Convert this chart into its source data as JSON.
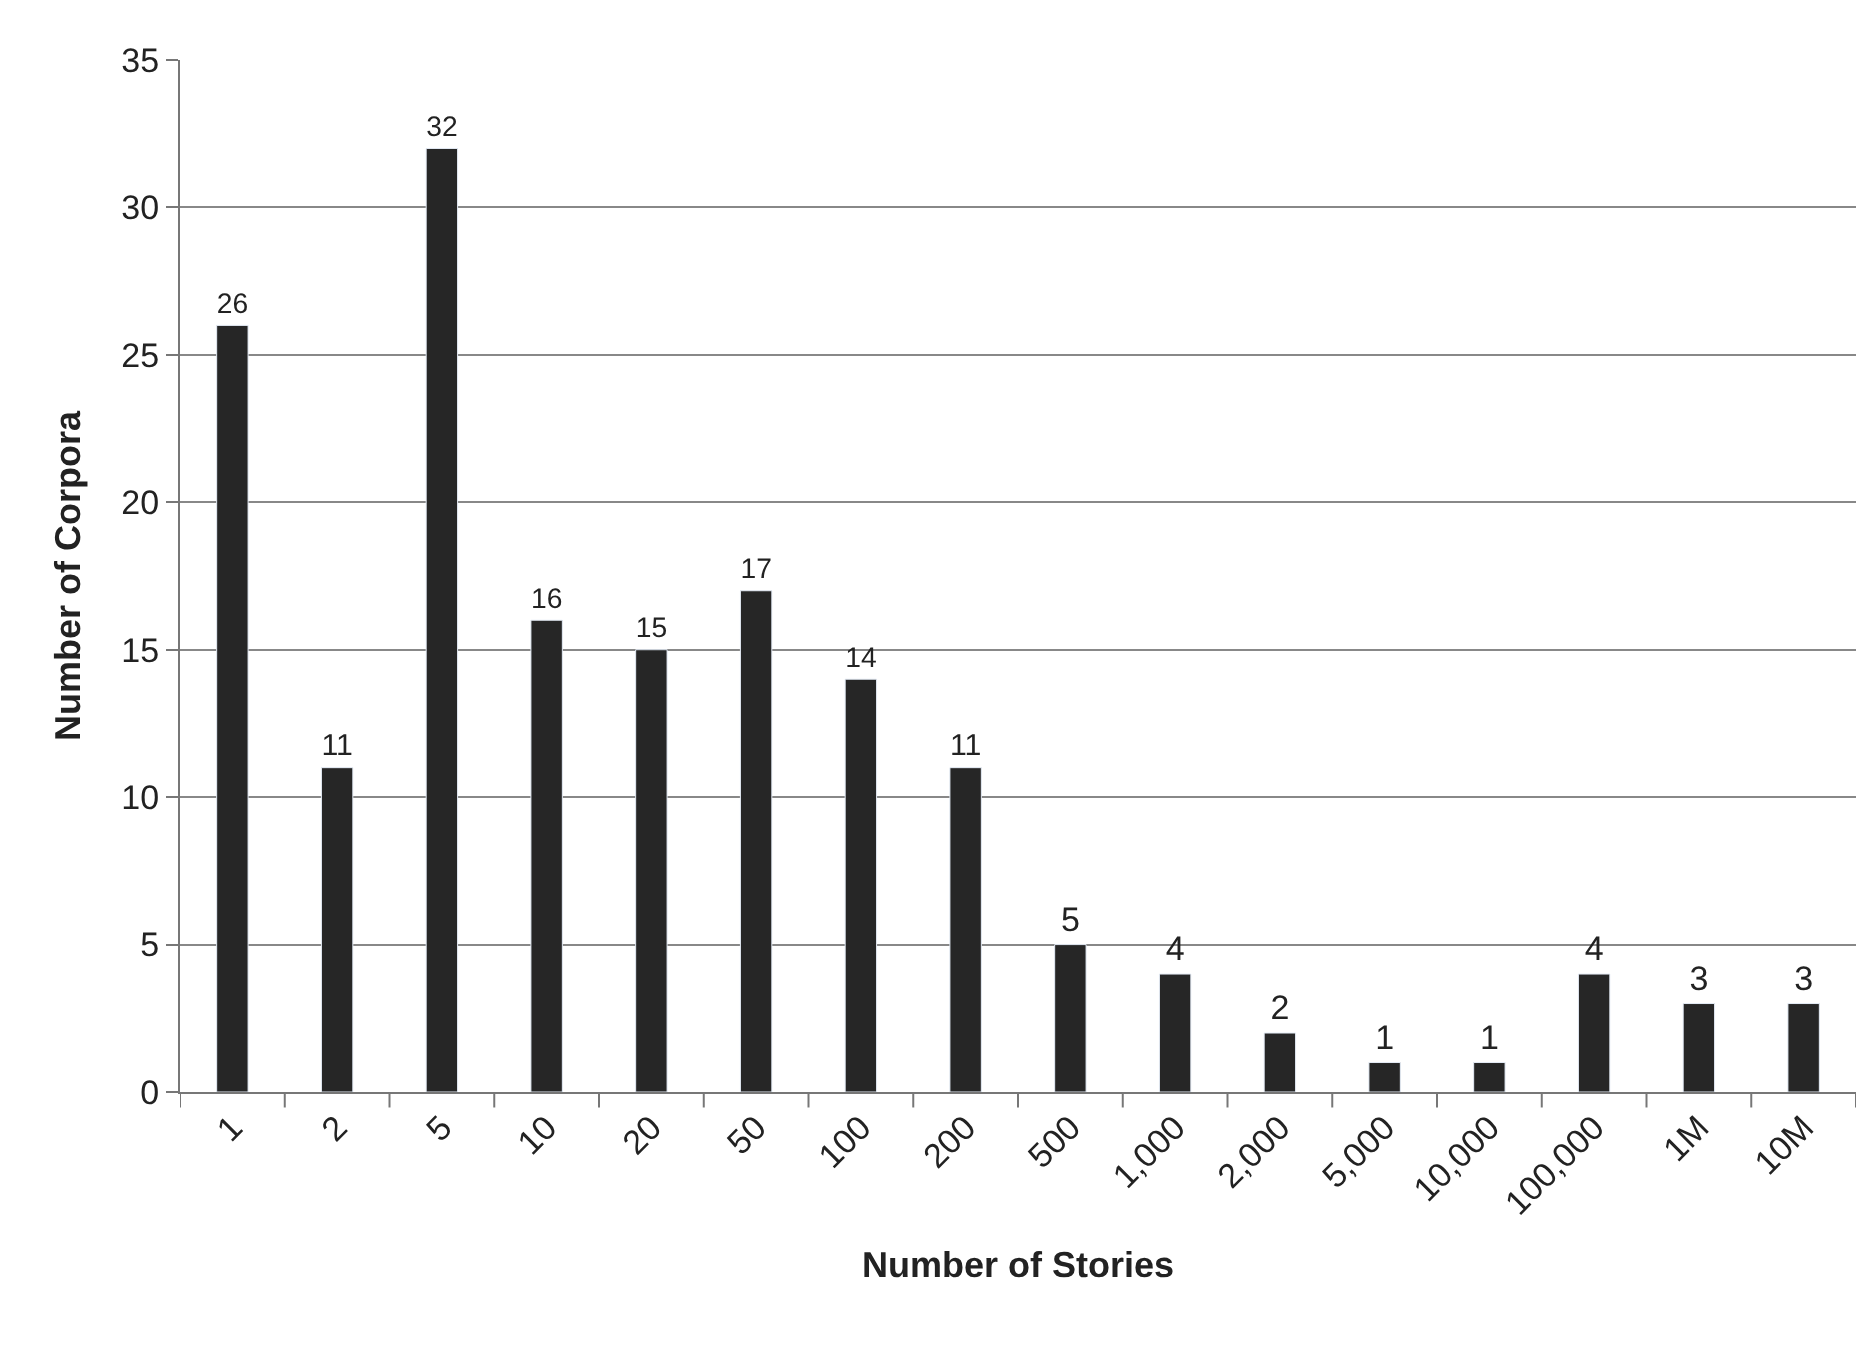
{
  "chart_data": {
    "type": "bar",
    "xlabel": "Number of Stories",
    "ylabel": "Number of Corpora",
    "categories": [
      "1",
      "2",
      "5",
      "10",
      "20",
      "50",
      "100",
      "200",
      "500",
      "1,000",
      "2,000",
      "5,000",
      "10,000",
      "100,000",
      "1M",
      "10M"
    ],
    "values": [
      26,
      11,
      32,
      16,
      15,
      17,
      14,
      11,
      5,
      4,
      2,
      1,
      1,
      4,
      3,
      3
    ],
    "color": "#262626",
    "ylim": [
      0,
      35
    ],
    "yticks": [
      0,
      5,
      10,
      15,
      20,
      25,
      30,
      35
    ],
    "grid": "y",
    "data_labels": true,
    "legend": false
  }
}
